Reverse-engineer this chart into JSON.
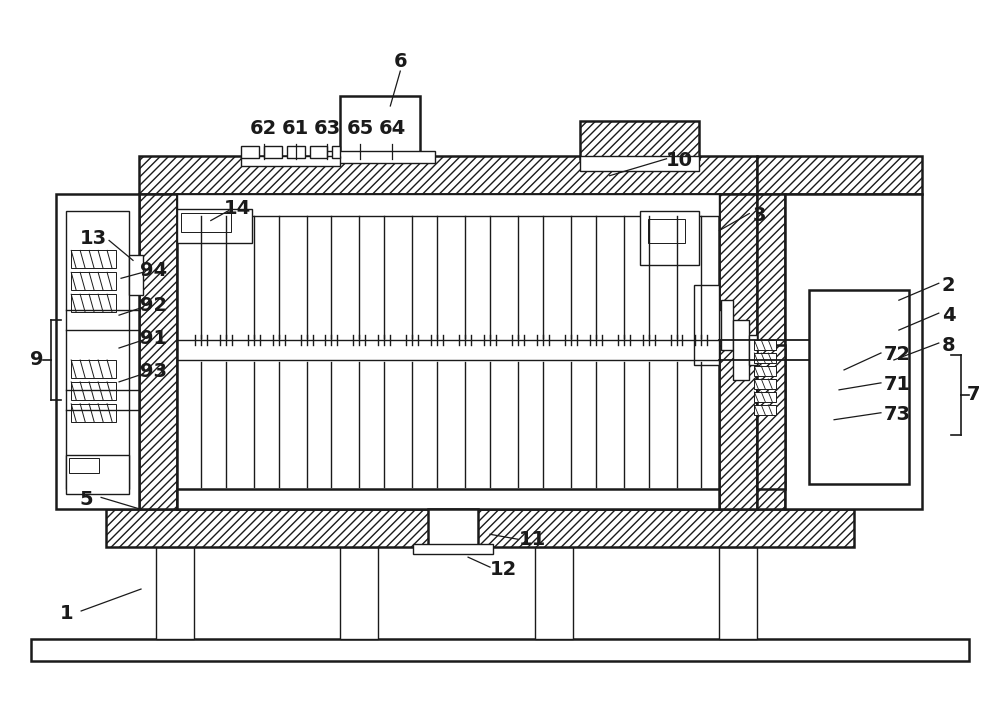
{
  "bg_color": "#ffffff",
  "line_color": "#1a1a1a",
  "fig_width": 10.0,
  "fig_height": 7.03
}
